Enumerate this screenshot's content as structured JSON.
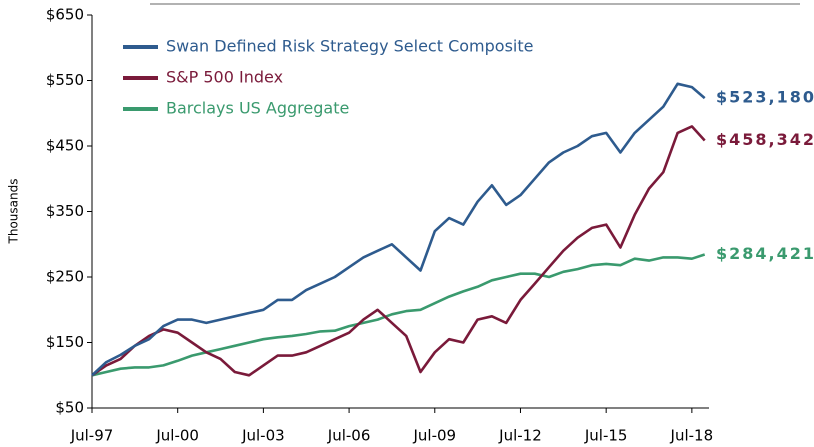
{
  "chart_data": {
    "type": "line",
    "y_label": "Thousands",
    "x": [
      1997.5,
      1998,
      1998.5,
      1999,
      1999.5,
      2000,
      2000.5,
      2001,
      2001.5,
      2002,
      2002.5,
      2003,
      2003.5,
      2004,
      2004.5,
      2005,
      2005.5,
      2006,
      2006.5,
      2007,
      2007.5,
      2008,
      2008.5,
      2009,
      2009.5,
      2010,
      2010.5,
      2011,
      2011.5,
      2012,
      2012.5,
      2013,
      2013.5,
      2014,
      2014.5,
      2015,
      2015.5,
      2016,
      2016.5,
      2017,
      2017.5,
      2018,
      2018.5,
      2018.95
    ],
    "xlim": [
      1997.5,
      2019.1
    ],
    "xticks": [
      {
        "value": 1997.5,
        "label": "Jul-97"
      },
      {
        "value": 2000.5,
        "label": "Jul-00"
      },
      {
        "value": 2003.5,
        "label": "Jul-03"
      },
      {
        "value": 2006.5,
        "label": "Jul-06"
      },
      {
        "value": 2009.5,
        "label": "Jul-09"
      },
      {
        "value": 2012.5,
        "label": "Jul-12"
      },
      {
        "value": 2015.5,
        "label": "Jul-15"
      },
      {
        "value": 2018.5,
        "label": "Jul-18"
      }
    ],
    "ylim": [
      50,
      650
    ],
    "yticks": [
      {
        "value": 50,
        "label": "$50"
      },
      {
        "value": 150,
        "label": "$150"
      },
      {
        "value": 250,
        "label": "$250"
      },
      {
        "value": 350,
        "label": "$350"
      },
      {
        "value": 450,
        "label": "$450"
      },
      {
        "value": 550,
        "label": "$550"
      },
      {
        "value": 650,
        "label": "$650"
      }
    ],
    "legend": "top-left",
    "series": [
      {
        "name": "Swan Defined Risk Strategy Select Composite",
        "color": "#2e5b8e",
        "end_label": "$523,180",
        "values": [
          100,
          120,
          131,
          145,
          155,
          175,
          185,
          185,
          180,
          185,
          190,
          195,
          200,
          215,
          215,
          230,
          240,
          250,
          265,
          280,
          290,
          300,
          280,
          260,
          320,
          340,
          330,
          365,
          390,
          360,
          375,
          400,
          425,
          440,
          450,
          465,
          470,
          440,
          470,
          490,
          510,
          545,
          540,
          523.18
        ]
      },
      {
        "name": "S&P 500 Index",
        "color": "#7a1a3a",
        "end_label": "$458,342",
        "values": [
          100,
          115,
          125,
          145,
          160,
          170,
          165,
          150,
          135,
          125,
          105,
          100,
          115,
          130,
          130,
          135,
          145,
          155,
          165,
          185,
          200,
          180,
          160,
          105,
          135,
          155,
          150,
          185,
          190,
          180,
          215,
          240,
          265,
          290,
          310,
          325,
          330,
          295,
          345,
          385,
          410,
          470,
          480,
          458.342
        ]
      },
      {
        "name": "Barclays US Aggregate",
        "color": "#3a9a6e",
        "end_label": "$284,421",
        "values": [
          100,
          105,
          110,
          112,
          112,
          115,
          122,
          130,
          135,
          140,
          145,
          150,
          155,
          158,
          160,
          163,
          167,
          168,
          175,
          180,
          185,
          193,
          198,
          200,
          210,
          220,
          228,
          235,
          245,
          250,
          255,
          255,
          250,
          258,
          262,
          268,
          270,
          268,
          278,
          275,
          280,
          280,
          278,
          284.421
        ]
      }
    ]
  }
}
